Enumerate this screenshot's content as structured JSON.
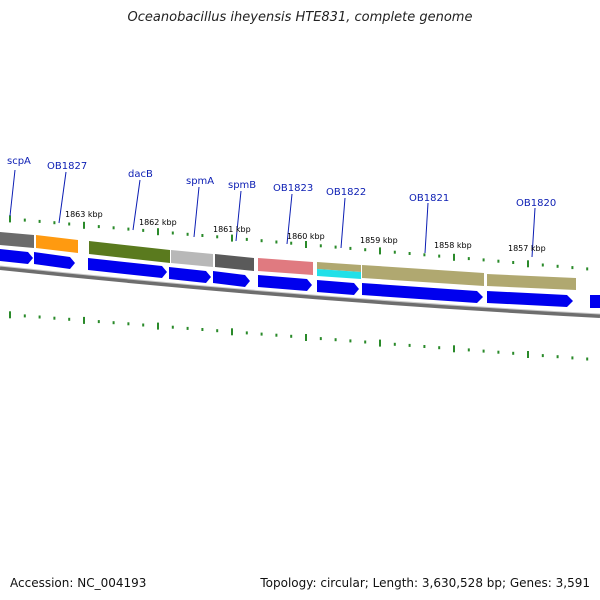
{
  "title": "Oceanobacillus iheyensis HTE831, complete genome",
  "footer": {
    "accession": "Accession: NC_004193",
    "stats": "Topology: circular; Length: 3,630,528 bp; Genes: 3,591"
  },
  "colors": {
    "cds": "#0000ee",
    "tick": "#2a8a2a",
    "label": "#0b1db3",
    "backbone": "#808080"
  },
  "gene_labels": [
    "scpA",
    "OB1827",
    "dacB",
    "spmA",
    "spmB",
    "OB1823",
    "OB1822",
    "OB1821",
    "OB1820"
  ],
  "kbp_labels": [
    "1863 kbp",
    "1862 kbp",
    "1861 kbp",
    "1860 kbp",
    "1859 kbp",
    "1858 kbp",
    "1857 kbp"
  ],
  "feature_colors": [
    "#6b6b6b",
    "#ff9a10",
    "#5a7a1e",
    "#b8b8b8",
    "#5a5a5a",
    "#e07a80",
    "#b0a870",
    "#20e0e8",
    "#b0a870",
    "#b0a870"
  ]
}
